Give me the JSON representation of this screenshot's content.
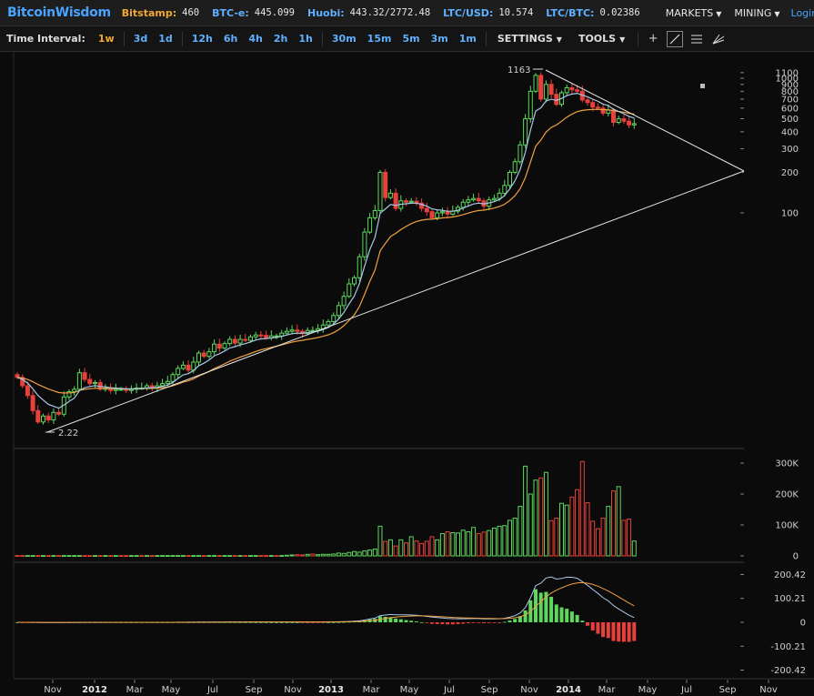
{
  "header": {
    "brand": "BitcoinWisdom",
    "tickers": [
      {
        "label": "Bitstamp:",
        "value": "460",
        "color": "#f0a830"
      },
      {
        "label": "BTC-e:",
        "value": "445.099",
        "color": "#5fb0ff"
      },
      {
        "label": "Huobi:",
        "value": "443.32/2772.48",
        "color": "#5fb0ff"
      },
      {
        "label": "LTC/USD:",
        "value": "10.574",
        "color": "#5fb0ff"
      },
      {
        "label": "LTC/BTC:",
        "value": "0.02386",
        "color": "#5fb0ff"
      }
    ],
    "menus": [
      "MARKETS",
      "MINING"
    ],
    "login_label": "Login"
  },
  "toolbar": {
    "time_interval_label": "Time Interval:",
    "intervals": [
      "1w",
      "3d",
      "1d",
      "12h",
      "6h",
      "4h",
      "2h",
      "1h",
      "30m",
      "15m",
      "5m",
      "3m",
      "1m"
    ],
    "active_interval": "1w",
    "settings_label": "SETTINGS",
    "tools_label": "TOOLS",
    "tool_icons": [
      "crosshair-icon",
      "trendline-icon",
      "horizontal-lines-icon",
      "fan-icon"
    ]
  },
  "chart_data": [
    {
      "type": "candlestick",
      "panel": "price",
      "yscale": "log",
      "yticks": [
        "100",
        "200",
        "300",
        "400",
        "500",
        "600",
        "700",
        "800",
        "900",
        "1000",
        "1100"
      ],
      "annotations": [
        {
          "text": "1163",
          "note": "high"
        },
        {
          "text": "2.22",
          "note": "low"
        }
      ],
      "weekly_close_approx": [
        6.0,
        5.2,
        4.4,
        3.4,
        2.8,
        3.1,
        2.9,
        3.3,
        3.2,
        4.3,
        4.7,
        4.9,
        6.5,
        5.8,
        5.4,
        5.5,
        4.9,
        5.0,
        4.8,
        4.9,
        4.9,
        4.8,
        4.9,
        5.0,
        5.0,
        5.2,
        5.0,
        5.2,
        5.4,
        5.6,
        6.3,
        7.0,
        7.4,
        6.8,
        7.8,
        9.1,
        8.6,
        9.3,
        10.6,
        9.9,
        10.7,
        11.5,
        10.8,
        11.5,
        11.3,
        12.0,
        12.4,
        12.3,
        11.8,
        12.2,
        12.2,
        12.8,
        13.2,
        13.5,
        13.2,
        12.7,
        13.4,
        13.4,
        13.8,
        14.7,
        15.6,
        17.3,
        20.5,
        24.0,
        29.7,
        33.0,
        47.2,
        72.0,
        91.9,
        104.0,
        200.0,
        130.0,
        140.0,
        108.0,
        123.0,
        120.0,
        122.0,
        118.0,
        108.0,
        102.0,
        92.0,
        100.0,
        102.0,
        98.0,
        103.0,
        110.0,
        120.0,
        125.0,
        128.0,
        123.0,
        112.0,
        125.0,
        128.0,
        140.0,
        160.0,
        200.0,
        240.0,
        320.0,
        500.0,
        800.0,
        1050.0,
        700.0,
        900.0,
        760.0,
        640.0,
        780.0,
        850.0,
        820.0,
        800.0,
        690.0,
        660.0,
        610.0,
        600.0,
        550.0,
        580.0,
        470.0,
        500.0,
        480.0,
        450.0,
        460.0
      ]
    },
    {
      "type": "bar",
      "panel": "volume",
      "yticks": [
        "0",
        "100K",
        "200K",
        "300K"
      ],
      "volume_approx_k": [
        1,
        1,
        1,
        1,
        1,
        1,
        1,
        1,
        1,
        1,
        1,
        1,
        1,
        1,
        1,
        1,
        1,
        1,
        1,
        1,
        1,
        1,
        1,
        1,
        1,
        1,
        1,
        1,
        1,
        1,
        1,
        1,
        1,
        1,
        1,
        1,
        1,
        1,
        1,
        1,
        1,
        1,
        1,
        1,
        1,
        1,
        1,
        1,
        1,
        1,
        1,
        1,
        2,
        3,
        4,
        3,
        5,
        6,
        4,
        5,
        5,
        6,
        9,
        8,
        11,
        14,
        12,
        16,
        19,
        22,
        96,
        47,
        52,
        32,
        52,
        42,
        62,
        48,
        40,
        47,
        62,
        52,
        72,
        78,
        75,
        74,
        83,
        78,
        92,
        72,
        77,
        82,
        90,
        96,
        98,
        115,
        122,
        160,
        290,
        200,
        245,
        252,
        270,
        114,
        122,
        170,
        164,
        190,
        214,
        305,
        172,
        112,
        88,
        122,
        160,
        210,
        224,
        115,
        119,
        48
      ],
      "up": [
        false,
        false,
        true,
        true,
        false,
        true,
        false,
        true,
        false,
        true,
        true,
        true,
        true,
        false,
        false,
        true,
        false,
        true,
        false,
        true,
        false,
        false,
        true,
        true,
        false,
        true,
        false,
        true,
        true,
        true,
        true,
        true,
        true,
        false,
        true,
        true,
        false,
        true,
        true,
        false,
        true,
        true,
        false,
        true,
        false,
        true,
        true,
        false,
        false,
        true,
        false,
        true,
        true,
        true,
        false,
        false,
        true,
        false,
        true,
        true,
        true,
        true,
        true,
        true,
        true,
        true,
        true,
        true,
        true,
        true,
        true,
        false,
        true,
        false,
        true,
        false,
        true,
        false,
        false,
        false,
        false,
        true,
        true,
        false,
        true,
        true,
        true,
        true,
        true,
        false,
        false,
        true,
        true,
        true,
        true,
        true,
        true,
        true,
        true,
        true,
        true,
        false,
        true,
        false,
        false,
        true,
        true,
        false,
        false,
        false,
        false,
        false,
        false,
        false,
        true,
        false,
        true,
        false,
        false,
        true
      ]
    },
    {
      "type": "line_histogram",
      "panel": "macd",
      "yticks": [
        "200.42",
        "100.21",
        "0",
        "-100.21",
        "-200.42"
      ]
    }
  ],
  "xaxis": {
    "ticks": [
      {
        "label": "Nov",
        "bold": false
      },
      {
        "label": "2012",
        "bold": true
      },
      {
        "label": "Mar",
        "bold": false
      },
      {
        "label": "May",
        "bold": false
      },
      {
        "label": "Jul",
        "bold": false
      },
      {
        "label": "Sep",
        "bold": false
      },
      {
        "label": "Nov",
        "bold": false
      },
      {
        "label": "2013",
        "bold": true
      },
      {
        "label": "Mar",
        "bold": false
      },
      {
        "label": "May",
        "bold": false
      },
      {
        "label": "Jul",
        "bold": false
      },
      {
        "label": "Sep",
        "bold": false
      },
      {
        "label": "Nov",
        "bold": false
      },
      {
        "label": "2014",
        "bold": true
      },
      {
        "label": "Mar",
        "bold": false
      },
      {
        "label": "May",
        "bold": false
      },
      {
        "label": "Jul",
        "bold": false
      },
      {
        "label": "Sep",
        "bold": false
      },
      {
        "label": "Nov",
        "bold": false
      }
    ]
  },
  "colors": {
    "up": "#5dd85d",
    "down": "#e8403a",
    "ema_short": "#a8c8e8",
    "ema_long": "#f0a040",
    "trendline": "#e8e8e8",
    "grid": "#262626",
    "separator": "#3a3a3a"
  }
}
